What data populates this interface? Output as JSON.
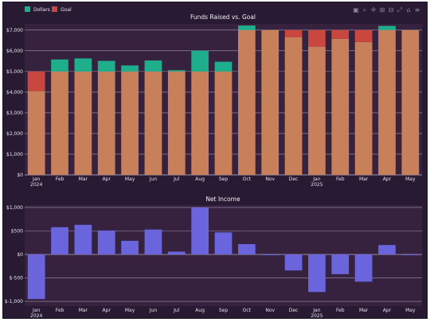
{
  "legend": [
    {
      "label": "Dollars",
      "color": "#1fae8c"
    },
    {
      "label": "Goal",
      "color": "#c9473f"
    }
  ],
  "toolbar": {
    "icons": [
      "camera-icon",
      "zoom-icon",
      "pan-icon",
      "zoom-in-icon",
      "zoom-out-icon",
      "autoscale-icon",
      "reset-axes-icon",
      "plotly-logo-icon"
    ]
  },
  "colors": {
    "background": "#271a32",
    "plot_bg": "#36223f",
    "overlap": "#c8805a",
    "income": "#6a64dd",
    "grid": "#c7bdd3"
  },
  "chart_data": [
    {
      "type": "bar",
      "title": "Funds Raised vs. Goal",
      "barmode": "overlay",
      "categories": [
        "Jan\n2024",
        "Feb",
        "Mar",
        "Apr",
        "May",
        "Jun",
        "Jul",
        "Aug",
        "Sep",
        "Oct",
        "Nov",
        "Dec",
        "Jan\n2025",
        "Feb",
        "Mar",
        "Apr",
        "May"
      ],
      "series": [
        {
          "name": "Dollars",
          "values": [
            4050,
            5580,
            5630,
            5510,
            5290,
            5530,
            5060,
            6000,
            5470,
            7220,
            7000,
            6660,
            6200,
            6580,
            6420,
            7200,
            7000
          ]
        },
        {
          "name": "Goal",
          "values": [
            5000,
            5000,
            5000,
            5000,
            5000,
            5000,
            5000,
            5000,
            5000,
            7000,
            7000,
            7000,
            7000,
            7000,
            7000,
            7000,
            7000
          ]
        }
      ],
      "ylim": [
        0,
        7300
      ],
      "yticks": [
        0,
        1000,
        2000,
        3000,
        4000,
        5000,
        6000,
        7000
      ],
      "ytick_labels": [
        "$0",
        "$1,000",
        "$2,000",
        "$3,000",
        "$4,000",
        "$5,000",
        "$6,000",
        "$7,000"
      ],
      "legend_position": "top-left",
      "grid": true
    },
    {
      "type": "bar",
      "title": "Net Income",
      "categories": [
        "Jan\n2024",
        "Feb",
        "Mar",
        "Apr",
        "May",
        "Jun",
        "Jul",
        "Aug",
        "Sep",
        "Oct",
        "Nov",
        "Dec",
        "Jan\n2025",
        "Feb",
        "Mar",
        "Apr",
        "May"
      ],
      "series": [
        {
          "values": [
            -950,
            580,
            630,
            510,
            290,
            530,
            60,
            1000,
            470,
            220,
            0,
            -340,
            -800,
            -420,
            -580,
            200,
            0
          ]
        }
      ],
      "ylim": [
        -1100,
        1050
      ],
      "yticks": [
        -1000,
        -500,
        0,
        500,
        1000
      ],
      "ytick_labels": [
        "$-1,000",
        "$-500",
        "$0",
        "$500",
        "$1,000"
      ],
      "grid": true
    }
  ]
}
